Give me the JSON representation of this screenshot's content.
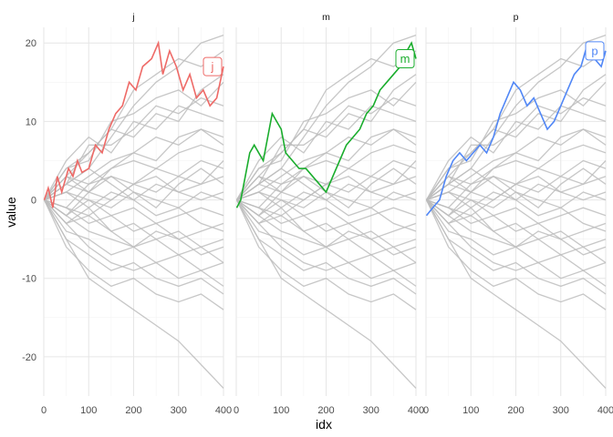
{
  "chart_data": {
    "type": "line",
    "facets": [
      "j",
      "m",
      "p"
    ],
    "xlabel": "idx",
    "ylabel": "value",
    "xlim": [
      0,
      400
    ],
    "ylim": [
      -25,
      22
    ],
    "x_ticks": [
      0,
      100,
      200,
      300,
      400
    ],
    "y_ticks": [
      -20,
      -10,
      0,
      10,
      20
    ],
    "grid": true,
    "background_series_color": "#bdbdbd",
    "background_series_count": 26,
    "background_series": [
      {
        "x": [
          1,
          50,
          100,
          150,
          200,
          250,
          300,
          350,
          400
        ],
        "y": [
          0,
          2,
          4,
          8,
          12,
          15,
          17,
          20,
          21
        ]
      },
      {
        "x": [
          1,
          50,
          100,
          150,
          200,
          250,
          300,
          350,
          400
        ],
        "y": [
          0,
          3,
          6,
          9,
          14,
          16,
          18,
          17,
          19
        ]
      },
      {
        "x": [
          1,
          50,
          100,
          150,
          200,
          250,
          300,
          350,
          400
        ],
        "y": [
          0,
          4,
          5,
          10,
          11,
          13,
          14,
          12,
          15
        ]
      },
      {
        "x": [
          1,
          50,
          100,
          150,
          200,
          250,
          300,
          350,
          400
        ],
        "y": [
          0,
          2,
          7,
          7,
          9,
          12,
          11,
          13,
          12
        ]
      },
      {
        "x": [
          1,
          50,
          100,
          150,
          200,
          250,
          300,
          350,
          400
        ],
        "y": [
          0,
          5,
          8,
          6,
          10,
          9,
          12,
          11,
          10
        ]
      },
      {
        "x": [
          1,
          50,
          100,
          150,
          200,
          250,
          300,
          350,
          400
        ],
        "y": [
          0,
          1,
          3,
          5,
          6,
          8,
          7,
          9,
          8
        ]
      },
      {
        "x": [
          1,
          50,
          100,
          150,
          200,
          250,
          300,
          350,
          400
        ],
        "y": [
          0,
          3,
          2,
          4,
          5,
          4,
          6,
          7,
          6
        ]
      },
      {
        "x": [
          1,
          50,
          100,
          150,
          200,
          250,
          300,
          350,
          400
        ],
        "y": [
          0,
          -1,
          2,
          3,
          2,
          4,
          3,
          5,
          4
        ]
      },
      {
        "x": [
          1,
          50,
          100,
          150,
          200,
          250,
          300,
          350,
          400
        ],
        "y": [
          0,
          2,
          1,
          0,
          2,
          1,
          3,
          2,
          3
        ]
      },
      {
        "x": [
          1,
          50,
          100,
          150,
          200,
          250,
          300,
          350,
          400
        ],
        "y": [
          0,
          1,
          -1,
          1,
          0,
          2,
          1,
          0,
          1
        ]
      },
      {
        "x": [
          1,
          50,
          100,
          150,
          200,
          250,
          300,
          350,
          400
        ],
        "y": [
          0,
          -2,
          0,
          -1,
          1,
          0,
          -1,
          1,
          0
        ]
      },
      {
        "x": [
          1,
          50,
          100,
          150,
          200,
          250,
          300,
          350,
          400
        ],
        "y": [
          0,
          1,
          0,
          -2,
          -1,
          -3,
          -2,
          -1,
          -2
        ]
      },
      {
        "x": [
          1,
          50,
          100,
          150,
          200,
          250,
          300,
          350,
          400
        ],
        "y": [
          0,
          -1,
          -3,
          -2,
          -4,
          -3,
          -5,
          -4,
          -3
        ]
      },
      {
        "x": [
          1,
          50,
          100,
          150,
          200,
          250,
          300,
          350,
          400
        ],
        "y": [
          0,
          -3,
          -2,
          -4,
          -3,
          -5,
          -4,
          -6,
          -5
        ]
      },
      {
        "x": [
          1,
          50,
          100,
          150,
          200,
          250,
          300,
          350,
          400
        ],
        "y": [
          0,
          -2,
          -4,
          -5,
          -6,
          -5,
          -7,
          -6,
          -8
        ]
      },
      {
        "x": [
          1,
          50,
          100,
          150,
          200,
          250,
          300,
          350,
          400
        ],
        "y": [
          0,
          -4,
          -5,
          -7,
          -6,
          -8,
          -7,
          -9,
          -8
        ]
      },
      {
        "x": [
          1,
          50,
          100,
          150,
          200,
          250,
          300,
          350,
          400
        ],
        "y": [
          0,
          -3,
          -6,
          -8,
          -9,
          -8,
          -10,
          -9,
          -11
        ]
      },
      {
        "x": [
          1,
          50,
          100,
          150,
          200,
          250,
          300,
          350,
          400
        ],
        "y": [
          0,
          -5,
          -7,
          -9,
          -8,
          -10,
          -11,
          -10,
          -12
        ]
      },
      {
        "x": [
          1,
          50,
          100,
          150,
          200,
          250,
          300,
          350,
          400
        ],
        "y": [
          0,
          -6,
          -9,
          -11,
          -10,
          -12,
          -13,
          -12,
          -14
        ]
      },
      {
        "x": [
          1,
          50,
          100,
          150,
          200,
          250,
          300,
          350,
          400
        ],
        "y": [
          0,
          -5,
          -10,
          -12,
          -14,
          -16,
          -18,
          -21,
          -24
        ]
      },
      {
        "x": [
          1,
          50,
          100,
          150,
          200,
          250,
          300,
          350,
          400
        ],
        "y": [
          0,
          3,
          1,
          4,
          6,
          5,
          8,
          9,
          7
        ]
      },
      {
        "x": [
          1,
          50,
          100,
          150,
          200,
          250,
          300,
          350,
          400
        ],
        "y": [
          0,
          -2,
          1,
          3,
          1,
          -1,
          2,
          4,
          2
        ]
      },
      {
        "x": [
          1,
          50,
          100,
          150,
          200,
          250,
          300,
          350,
          400
        ],
        "y": [
          0,
          2,
          4,
          2,
          0,
          -2,
          -1,
          -3,
          -4
        ]
      },
      {
        "x": [
          1,
          50,
          100,
          150,
          200,
          250,
          300,
          350,
          400
        ],
        "y": [
          0,
          -1,
          -2,
          0,
          2,
          3,
          1,
          2,
          5
        ]
      },
      {
        "x": [
          1,
          50,
          100,
          150,
          200,
          250,
          300,
          350,
          400
        ],
        "y": [
          0,
          4,
          6,
          9,
          8,
          11,
          10,
          14,
          16
        ]
      },
      {
        "x": [
          1,
          50,
          100,
          150,
          200,
          250,
          300,
          350,
          400
        ],
        "y": [
          0,
          -3,
          -1,
          -4,
          -6,
          -4,
          -5,
          -7,
          -6
        ]
      }
    ],
    "series": [
      {
        "name": "j",
        "color": "#ee6a67",
        "end_label": "j",
        "x": [
          1,
          10,
          20,
          30,
          40,
          55,
          65,
          75,
          85,
          100,
          115,
          130,
          145,
          160,
          175,
          190,
          205,
          220,
          240,
          255,
          265,
          280,
          295,
          310,
          325,
          340,
          355,
          370,
          385,
          400
        ],
        "y": [
          0,
          1.5,
          -1,
          3,
          1,
          4,
          3,
          5,
          3.5,
          4,
          7,
          6,
          9,
          11,
          12,
          15,
          14,
          17,
          18,
          20,
          16,
          19,
          17,
          14,
          16,
          13,
          14,
          12,
          13,
          17
        ]
      },
      {
        "name": "m",
        "color": "#1aad2d",
        "end_label": "m",
        "x": [
          1,
          10,
          20,
          30,
          40,
          50,
          60,
          70,
          80,
          90,
          100,
          110,
          125,
          140,
          155,
          170,
          185,
          200,
          215,
          230,
          245,
          260,
          275,
          290,
          305,
          320,
          335,
          350,
          365,
          380,
          390,
          400
        ],
        "y": [
          -1,
          0,
          3,
          6,
          7,
          6,
          5,
          8,
          11,
          10,
          9,
          6,
          5,
          4,
          4,
          3,
          2,
          1,
          3,
          5,
          7,
          8,
          9,
          11,
          12,
          14,
          15,
          16,
          17,
          19,
          20,
          18
        ]
      },
      {
        "name": "p",
        "color": "#5187f6",
        "end_label": "p",
        "x": [
          1,
          15,
          30,
          45,
          60,
          75,
          90,
          105,
          120,
          135,
          150,
          165,
          180,
          195,
          210,
          225,
          240,
          255,
          270,
          285,
          300,
          315,
          330,
          345,
          360,
          375,
          390,
          400
        ],
        "y": [
          -2,
          -1,
          0,
          3,
          5,
          6,
          5,
          6,
          7,
          6,
          8,
          11,
          13,
          15,
          14,
          12,
          13,
          11,
          9,
          10,
          12,
          14,
          16,
          17,
          20,
          18,
          17,
          19
        ]
      }
    ]
  }
}
